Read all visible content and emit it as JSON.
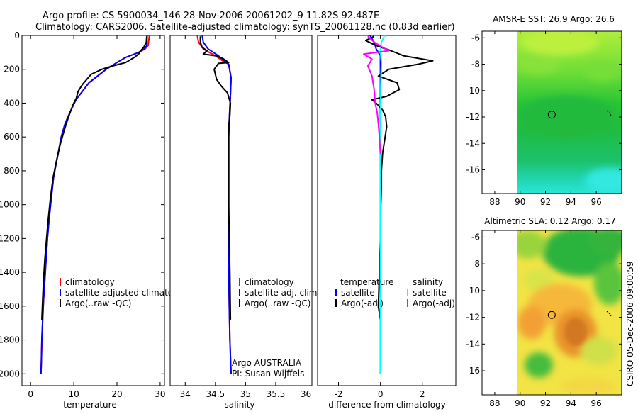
{
  "header": {
    "line1": "Argo profile: CS 5900034_146 28-Nov-2006 20061202_9 11.82S 92.487E",
    "line2": "Climatology: CARS2006. Satellite-adjusted climatology: synTS_20061128.nc (0.83d earlier)"
  },
  "footer": {
    "credit": "CSIRO 05-Dec-2006 09:00:59"
  },
  "colors": {
    "clim": "#ff0000",
    "sat": "#0000ff",
    "argo": "#000000",
    "sat_sal": "#00ffff",
    "argo_sal": "#ff00ff"
  },
  "chart_data": [
    {
      "id": "temperature",
      "type": "line",
      "xlabel": "temperature",
      "ylabel": "",
      "xlim": [
        -2,
        31
      ],
      "ylim": [
        2070,
        0
      ],
      "xticks": [
        0,
        10,
        20,
        30
      ],
      "yticks": [
        0,
        200,
        400,
        600,
        800,
        1000,
        1200,
        1400,
        1600,
        1800,
        2000
      ],
      "legend": [
        "climatology",
        "satellite-adjusted climatology",
        "Argo(..raw -QC)"
      ],
      "series": [
        {
          "name": "climatology",
          "color": "#ff0000",
          "x": [
            27.5,
            27.2,
            26.5,
            25,
            22,
            20,
            17.5,
            15.5,
            13.5,
            12,
            10.5,
            9.2,
            8,
            7.1,
            6.5,
            5.9,
            5.3,
            4.8,
            4.3,
            3.9,
            3.6,
            3.3,
            3.0,
            2.8,
            2.6,
            2.5,
            2.4
          ],
          "y": [
            0,
            60,
            80,
            100,
            130,
            160,
            200,
            240,
            280,
            330,
            380,
            450,
            520,
            600,
            680,
            760,
            840,
            960,
            1080,
            1200,
            1320,
            1440,
            1560,
            1680,
            1800,
            1920,
            2000
          ]
        },
        {
          "name": "satellite",
          "color": "#0000ff",
          "x": [
            27.0,
            26.9,
            26.3,
            25,
            22,
            20,
            17.5,
            15.5,
            13.5,
            12,
            10.5,
            9.2,
            8,
            7.1,
            6.5,
            5.9,
            5.3,
            4.8,
            4.3,
            3.9,
            3.6,
            3.3,
            3.0,
            2.8,
            2.6,
            2.5,
            2.4
          ],
          "y": [
            0,
            60,
            80,
            100,
            130,
            160,
            200,
            240,
            280,
            330,
            380,
            450,
            520,
            600,
            680,
            760,
            840,
            960,
            1080,
            1200,
            1320,
            1440,
            1560,
            1680,
            1800,
            1920,
            2000
          ]
        },
        {
          "name": "Argo",
          "color": "#000000",
          "x": [
            26.9,
            26.8,
            26.2,
            25.5,
            25,
            24,
            22,
            19,
            16.5,
            14,
            13,
            12,
            11,
            10.6,
            9.8,
            8.8,
            7.8,
            6.8,
            6,
            5.2,
            4.6,
            4.1,
            3.7,
            3.3,
            3.0,
            2.8,
            2.6
          ],
          "y": [
            5,
            40,
            70,
            90,
            110,
            130,
            160,
            180,
            200,
            230,
            260,
            290,
            330,
            370,
            410,
            480,
            560,
            650,
            740,
            840,
            960,
            1080,
            1200,
            1320,
            1440,
            1560,
            1680
          ]
        }
      ]
    },
    {
      "id": "salinity",
      "type": "line",
      "xlabel": "salinity",
      "ylabel": "",
      "xlim": [
        33.75,
        36.1
      ],
      "ylim": [
        2070,
        0
      ],
      "xticks": [
        34,
        34.5,
        35,
        35.5,
        36
      ],
      "yticks": [],
      "legend": [
        "climatology",
        "satellite adj. clim.",
        "Argo(..raw -QC)"
      ],
      "annotation": [
        "Argo AUSTRALIA",
        "PI: Susan Wijffels"
      ],
      "series": [
        {
          "name": "climatology",
          "color": "#ff0000",
          "x": [
            34.2,
            34.22,
            34.3,
            34.5,
            34.62,
            34.72,
            34.76,
            34.75,
            34.73,
            34.72,
            34.72,
            34.72,
            34.72,
            34.72,
            34.73,
            34.74,
            34.75,
            34.76
          ],
          "y": [
            0,
            40,
            80,
            120,
            150,
            170,
            250,
            350,
            500,
            600,
            800,
            1000,
            1200,
            1400,
            1600,
            1800,
            1900,
            2000
          ]
        },
        {
          "name": "satellite",
          "color": "#0000ff",
          "x": [
            34.28,
            34.3,
            34.38,
            34.55,
            34.65,
            34.72,
            34.76,
            34.75,
            34.73,
            34.72,
            34.72,
            34.72,
            34.72,
            34.72,
            34.73,
            34.74,
            34.75,
            34.76
          ],
          "y": [
            0,
            40,
            80,
            120,
            150,
            170,
            250,
            350,
            500,
            600,
            800,
            1000,
            1200,
            1400,
            1600,
            1800,
            1900,
            2000
          ]
        },
        {
          "name": "Argo",
          "color": "#000000",
          "x": [
            34.25,
            34.25,
            34.28,
            34.36,
            34.3,
            34.5,
            34.62,
            34.66,
            34.72,
            34.55,
            34.48,
            34.52,
            34.6,
            34.7,
            34.75,
            34.74,
            34.72,
            34.72,
            34.72,
            34.72,
            34.72,
            34.73,
            34.74,
            34.75
          ],
          "y": [
            5,
            40,
            70,
            90,
            110,
            120,
            135,
            145,
            160,
            165,
            200,
            260,
            300,
            340,
            400,
            470,
            540,
            620,
            720,
            860,
            1000,
            1200,
            1400,
            1680
          ]
        }
      ]
    },
    {
      "id": "difference",
      "type": "line",
      "xlabel": "difference from climatology",
      "ylabel": "",
      "xlim": [
        -3.0,
        3.6
      ],
      "ylim": [
        2070,
        0
      ],
      "xticks": [
        -2,
        0,
        2
      ],
      "yticks": [],
      "legend_left": {
        "title": "temperature",
        "items": [
          "satellite",
          "Argo(-adj)"
        ]
      },
      "legend_right": {
        "title": "salinity",
        "items": [
          "satellite",
          "Argo(-adj)"
        ]
      },
      "series": [
        {
          "name": "temperature satellite",
          "color": "#0000ff",
          "x": [
            -0.5,
            -0.3,
            -0.2,
            0,
            0,
            0,
            0,
            0,
            0,
            0,
            0
          ],
          "y": [
            0,
            40,
            80,
            120,
            200,
            400,
            600,
            800,
            1200,
            1600,
            2000
          ]
        },
        {
          "name": "temperature Argo(-adj)",
          "color": "#000000",
          "x": [
            -0.3,
            -0.7,
            -0.2,
            0.5,
            1.1,
            2.5,
            1.8,
            0.4,
            -0.1,
            0.8,
            0.9,
            0.3,
            -0.4,
            -0.2,
            0.1,
            0.25,
            0.3,
            0.2,
            0.1,
            0.05,
            0.05,
            0.02,
            0.0,
            -0.05,
            -0.1,
            0.02
          ],
          "y": [
            5,
            30,
            60,
            90,
            120,
            150,
            170,
            200,
            240,
            280,
            320,
            360,
            380,
            400,
            440,
            480,
            540,
            620,
            700,
            800,
            900,
            1000,
            1200,
            1400,
            1600,
            1700
          ]
        },
        {
          "name": "salinity satellite",
          "color": "#00ffff",
          "x": [
            0.2,
            0.05,
            0.0,
            0.02,
            0.05,
            0.02,
            0.0,
            0.0,
            0.0,
            0.0
          ],
          "y": [
            0,
            40,
            80,
            120,
            160,
            300,
            600,
            1000,
            1500,
            2000
          ]
        },
        {
          "name": "salinity Argo(-adj)",
          "color": "#ff00ff",
          "x": [
            -0.6,
            -0.3,
            0.1,
            0.4,
            -0.8,
            -0.4,
            -0.6,
            -0.4,
            -0.3,
            -0.25,
            -0.15,
            -0.1,
            -0.05,
            0.0
          ],
          "y": [
            5,
            40,
            70,
            90,
            110,
            140,
            180,
            240,
            320,
            400,
            460,
            520,
            600,
            700
          ]
        }
      ]
    },
    {
      "id": "sst-map",
      "type": "heatmap",
      "title": "AMSR-E SST: 26.9 Argo: 26.6",
      "xlim": [
        87,
        98
      ],
      "ylim": [
        -17.8,
        -5.5
      ],
      "xticks": [
        88,
        90,
        92,
        94,
        96
      ],
      "yticks": [
        -6,
        -8,
        -10,
        -12,
        -14,
        -16
      ],
      "marker": {
        "lon": 92.49,
        "lat": -11.82
      }
    },
    {
      "id": "sla-map",
      "type": "heatmap",
      "title": "Altimetric SLA: 0.12 Argo: 0.17",
      "xlim": [
        87,
        98
      ],
      "ylim": [
        -17.8,
        -5.5
      ],
      "xticks": [
        88,
        90,
        92,
        94,
        96
      ],
      "yticks": [
        -6,
        -8,
        -10,
        -12,
        -14,
        -16
      ],
      "marker": {
        "lon": 92.49,
        "lat": -11.82
      }
    }
  ]
}
